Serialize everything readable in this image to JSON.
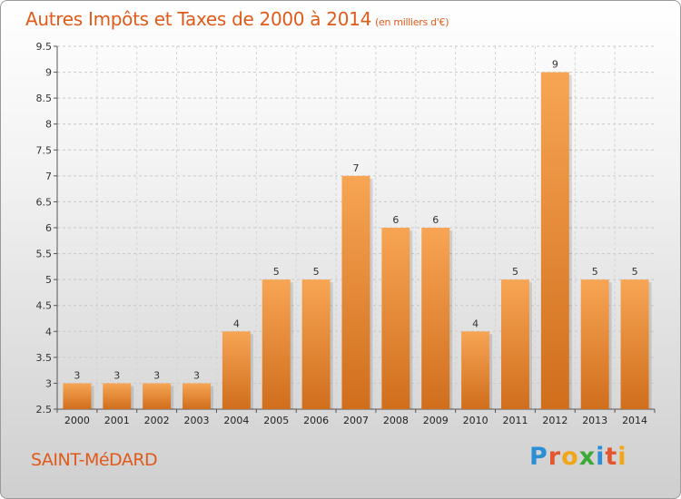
{
  "header": {
    "title": "Autres Impôts et Taxes de 2000 à 2014",
    "unit": "(en milliers d'€)"
  },
  "footer": {
    "commune": "SAINT-MéDARD",
    "logo_letters": [
      "P",
      "r",
      "o",
      "x",
      "i",
      "t",
      "i"
    ],
    "logo_colors": [
      "#2b8fd6",
      "#e4572e",
      "#f2a516",
      "#3aa935",
      "#2b8fd6",
      "#e4572e",
      "#f2a516"
    ]
  },
  "colors": {
    "bar_top": "#f7a554",
    "bar_bottom": "#d06e1c",
    "accent": "#e05a1a"
  },
  "chart_data": {
    "type": "bar",
    "title": "Autres Impôts et Taxes de 2000 à 2014",
    "subtitle": "(en milliers d'€)",
    "xlabel": "",
    "ylabel": "",
    "categories": [
      "2000",
      "2001",
      "2002",
      "2003",
      "2004",
      "2005",
      "2006",
      "2007",
      "2008",
      "2009",
      "2010",
      "2011",
      "2012",
      "2013",
      "2014"
    ],
    "values": [
      3,
      3,
      3,
      3,
      4,
      5,
      5,
      7,
      6,
      6,
      4,
      5,
      9,
      5,
      5
    ],
    "value_labels": [
      "3",
      "3",
      "3",
      "3",
      "4",
      "5",
      "5",
      "7",
      "6",
      "6",
      "4",
      "5",
      "9",
      "5",
      "5"
    ],
    "ylim": [
      2.5,
      9.5
    ],
    "yticks": [
      2.5,
      3,
      3.5,
      4,
      4.5,
      5,
      5.5,
      6,
      6.5,
      7,
      7.5,
      8,
      8.5,
      9,
      9.5
    ],
    "ytick_labels": [
      "2.5",
      "3",
      "3.5",
      "4",
      "4.5",
      "5",
      "5.5",
      "6",
      "6.5",
      "7",
      "7.5",
      "8",
      "8.5",
      "9",
      "9.5"
    ],
    "grid": true,
    "legend": "none"
  }
}
